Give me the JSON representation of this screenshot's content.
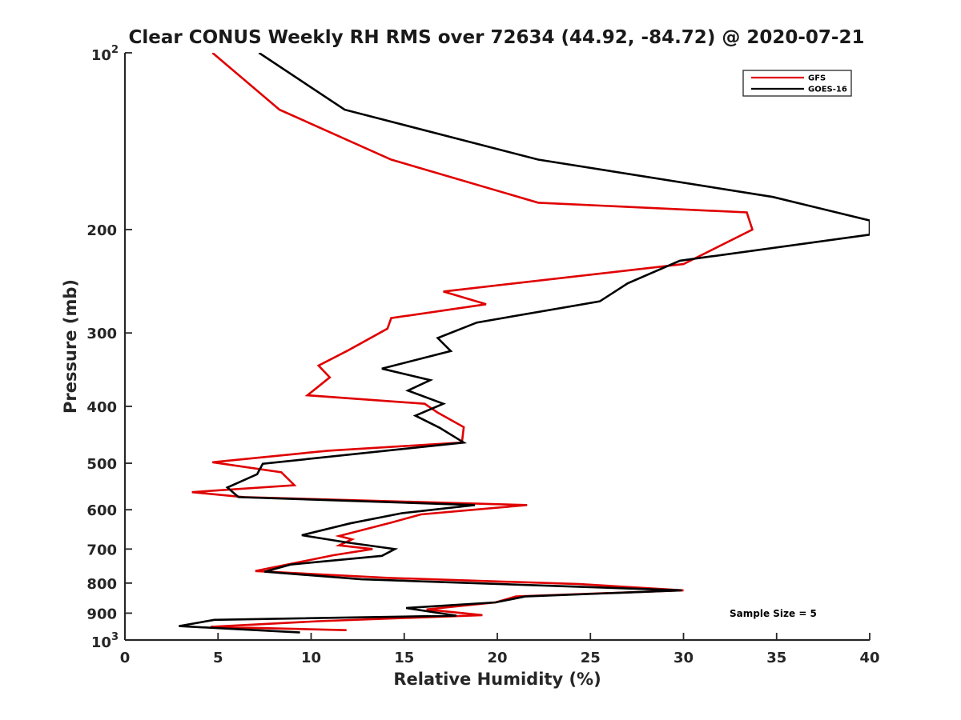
{
  "chart_data": {
    "type": "line",
    "title": "Clear CONUS Weekly RH RMS over 72634 (44.92, -84.72) @ 2020-07-21",
    "xlabel": "Relative Humidity (%)",
    "ylabel": "Pressure (mb)",
    "xlim": [
      0,
      40
    ],
    "ylim": [
      100,
      1000
    ],
    "yscale": "log",
    "y_reversed": true,
    "grid": false,
    "x_ticks": [
      0,
      5,
      10,
      15,
      20,
      25,
      30,
      35,
      40
    ],
    "x_tick_labels": [
      "0",
      "5",
      "10",
      "15",
      "20",
      "25",
      "30",
      "35",
      "40"
    ],
    "y_ticks": [
      200,
      300,
      400,
      500,
      600,
      700,
      800,
      900
    ],
    "y_tick_labels": [
      "200",
      "300",
      "400",
      "500",
      "600",
      "700",
      "800",
      "900"
    ],
    "y_end_ticks": [
      {
        "value": 100,
        "base": "10",
        "exp": "2"
      },
      {
        "value": 1000,
        "base": "10",
        "exp": "3"
      }
    ],
    "legend_position": "top-right",
    "annotation": "Sample Size = 5",
    "series": [
      {
        "name": "GFS",
        "color": "#e00000",
        "points": [
          [
            4.7,
            100
          ],
          [
            8.3,
            125
          ],
          [
            14.3,
            152
          ],
          [
            22.2,
            180
          ],
          [
            33.4,
            187
          ],
          [
            33.7,
            200
          ],
          [
            30.0,
            229
          ],
          [
            17.1,
            255
          ],
          [
            19.4,
            268
          ],
          [
            14.3,
            283
          ],
          [
            14.1,
            295
          ],
          [
            12.0,
            321
          ],
          [
            10.4,
            341
          ],
          [
            11.0,
            357
          ],
          [
            9.8,
            383
          ],
          [
            16.1,
            396
          ],
          [
            16.8,
            410
          ],
          [
            18.2,
            434
          ],
          [
            18.1,
            461
          ],
          [
            10.9,
            476
          ],
          [
            4.7,
            498
          ],
          [
            8.4,
            518
          ],
          [
            9.1,
            545
          ],
          [
            3.6,
            560
          ],
          [
            6.4,
            571
          ],
          [
            21.6,
            589
          ],
          [
            15.9,
            611
          ],
          [
            14.3,
            631
          ],
          [
            11.5,
            665
          ],
          [
            12.2,
            674
          ],
          [
            11.5,
            690
          ],
          [
            13.3,
            700
          ],
          [
            11.2,
            717
          ],
          [
            7.0,
            763
          ],
          [
            14.2,
            784
          ],
          [
            24.4,
            803
          ],
          [
            30.0,
            823
          ],
          [
            21.0,
            843
          ],
          [
            19.9,
            863
          ],
          [
            16.2,
            887
          ],
          [
            19.2,
            907
          ],
          [
            10.4,
            929
          ],
          [
            4.6,
            950
          ],
          [
            11.9,
            962
          ]
        ]
      },
      {
        "name": "GOES-16",
        "color": "#000000",
        "points": [
          [
            7.2,
            100
          ],
          [
            11.8,
            125
          ],
          [
            22.2,
            152
          ],
          [
            34.8,
            176
          ],
          [
            40.0,
            193
          ],
          [
            40.0,
            204
          ],
          [
            29.8,
            226
          ],
          [
            27.0,
            247
          ],
          [
            25.5,
            265
          ],
          [
            18.9,
            288
          ],
          [
            16.8,
            306
          ],
          [
            17.5,
            322
          ],
          [
            13.8,
            345
          ],
          [
            16.4,
            361
          ],
          [
            15.2,
            376
          ],
          [
            17.1,
            396
          ],
          [
            15.6,
            415
          ],
          [
            16.9,
            435
          ],
          [
            18.2,
            461
          ],
          [
            7.4,
            501
          ],
          [
            7.1,
            522
          ],
          [
            5.5,
            550
          ],
          [
            6.1,
            571
          ],
          [
            18.8,
            589
          ],
          [
            14.9,
            608
          ],
          [
            12.1,
            633
          ],
          [
            9.5,
            663
          ],
          [
            11.9,
            682
          ],
          [
            14.5,
            700
          ],
          [
            13.8,
            719
          ],
          [
            8.9,
            744
          ],
          [
            7.5,
            765
          ],
          [
            12.7,
            788
          ],
          [
            29.9,
            823
          ],
          [
            21.5,
            843
          ],
          [
            19.9,
            863
          ],
          [
            15.1,
            882
          ],
          [
            17.8,
            909
          ],
          [
            4.8,
            924
          ],
          [
            2.9,
            947
          ],
          [
            9.4,
            971
          ]
        ]
      }
    ]
  }
}
